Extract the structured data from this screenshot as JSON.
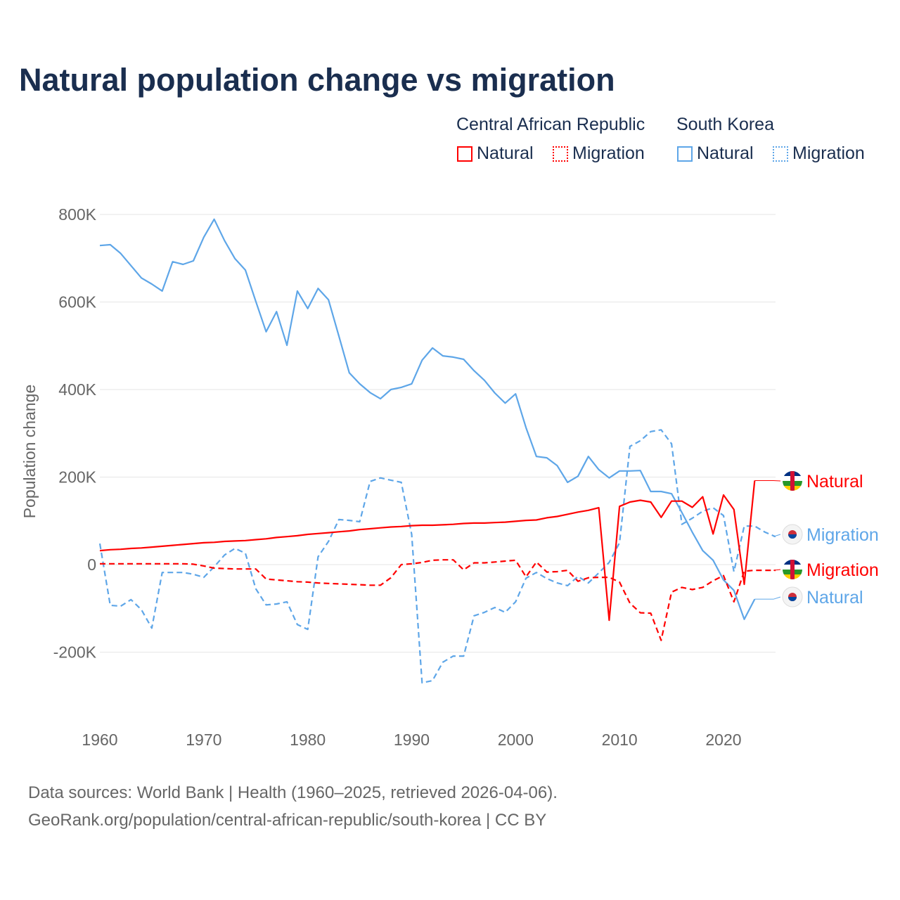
{
  "chart_data": {
    "type": "line",
    "title": "Natural population change vs migration",
    "xlabel": "",
    "ylabel": "Population change",
    "xlim": [
      1960,
      2025
    ],
    "ylim": [
      -300000,
      850000
    ],
    "xticks": [
      1960,
      1970,
      1980,
      1990,
      2000,
      2010,
      2020
    ],
    "xtick_labels": [
      "1960",
      "1970",
      "1980",
      "1990",
      "2000",
      "2010",
      "2020"
    ],
    "yticks": [
      -200000,
      0,
      200000,
      400000,
      600000,
      800000
    ],
    "ytick_labels": [
      "-200K",
      "0",
      "200K",
      "400K",
      "600K",
      "800K"
    ],
    "grid": true,
    "legend": {
      "placement": "top-right",
      "groups": [
        {
          "title": "Central African Republic",
          "items": [
            "Natural",
            "Migration"
          ]
        },
        {
          "title": "South Korea",
          "items": [
            "Natural",
            "Migration"
          ]
        }
      ]
    },
    "series": [
      {
        "name": "South Korea Natural",
        "country": "South Korea",
        "kind": "Natural",
        "color": "#5ea6e8",
        "dash": false,
        "start": 1960,
        "label": "Natural",
        "values_k": [
          729,
          731,
          711,
          683,
          655,
          641,
          625,
          692,
          686,
          694,
          748,
          789,
          740,
          699,
          673,
          602,
          532,
          578,
          501,
          625,
          585,
          631,
          605,
          522,
          438,
          413,
          393,
          379,
          400,
          405,
          413,
          467,
          495,
          477,
          474,
          469,
          443,
          421,
          392,
          369,
          390,
          313,
          247,
          244,
          226,
          188,
          202,
          247,
          217,
          198,
          214,
          214,
          215,
          167,
          167,
          162,
          119,
          74,
          32,
          10,
          -35,
          -59,
          -125,
          -79
        ]
      },
      {
        "name": "South Korea Migration",
        "country": "South Korea",
        "kind": "Migration",
        "color": "#5ea6e8",
        "dash": true,
        "start": 1960,
        "label": "Migration",
        "values_k": [
          48,
          -93,
          -95,
          -80,
          -103,
          -145,
          -18,
          -18,
          -18,
          -22,
          -29,
          -5,
          22,
          37,
          26,
          -55,
          -92,
          -90,
          -85,
          -137,
          -148,
          18,
          53,
          103,
          101,
          98,
          190,
          198,
          193,
          188,
          69,
          -270,
          -265,
          -223,
          -209,
          -209,
          -117,
          -109,
          -98,
          -109,
          -85,
          -31,
          -18,
          -32,
          -42,
          -48,
          -27,
          -42,
          -19,
          5,
          50,
          270,
          283,
          304,
          308,
          276,
          92,
          106,
          122,
          130,
          112,
          -16,
          88,
          88,
          74,
          64
        ]
      },
      {
        "name": "Central African Republic Natural",
        "country": "Central African Republic",
        "kind": "Natural",
        "color": "#ff0000",
        "dash": false,
        "start": 1960,
        "label": "Natural",
        "values_k": [
          32,
          34,
          35,
          37,
          38,
          40,
          42,
          44,
          46,
          48,
          50,
          51,
          53,
          54,
          55,
          57,
          59,
          62,
          64,
          66,
          69,
          71,
          73,
          75,
          77,
          80,
          82,
          84,
          86,
          87,
          89,
          90,
          90,
          91,
          92,
          94,
          95,
          95,
          96,
          97,
          99,
          101,
          102,
          107,
          110,
          115,
          120,
          124,
          130,
          -127,
          133,
          143,
          147,
          143,
          108,
          145,
          145,
          131,
          155,
          70,
          159,
          126,
          -45,
          192
        ]
      },
      {
        "name": "Central African Republic Migration",
        "country": "Central African Republic",
        "kind": "Migration",
        "color": "#ff0000",
        "dash": true,
        "start": 1960,
        "label": "Migration",
        "values_k": [
          2,
          2,
          2,
          2,
          2,
          2,
          2,
          2,
          2,
          1,
          -3,
          -8,
          -9,
          -10,
          -10,
          -10,
          -33,
          -35,
          -37,
          -39,
          -40,
          -42,
          -43,
          -44,
          -45,
          -46,
          -47,
          -47,
          -30,
          0,
          2,
          5,
          10,
          11,
          11,
          -12,
          4,
          4,
          6,
          8,
          10,
          -28,
          6,
          -17,
          -16,
          -13,
          -38,
          -30,
          -29,
          -29,
          -40,
          -88,
          -110,
          -111,
          -173,
          -63,
          -52,
          -57,
          -52,
          -37,
          -25,
          -85,
          -15,
          -13,
          -13,
          -13
        ]
      }
    ]
  },
  "legend": {
    "car": "Central African Republic",
    "sk": "South Korea",
    "natural": "Natural",
    "migration": "Migration"
  },
  "source_line1": "Data sources: World Bank | Health (1960–2025, retrieved 2026-04-06).",
  "source_line2": "GeoRank.org/population/central-african-republic/south-korea | CC BY"
}
